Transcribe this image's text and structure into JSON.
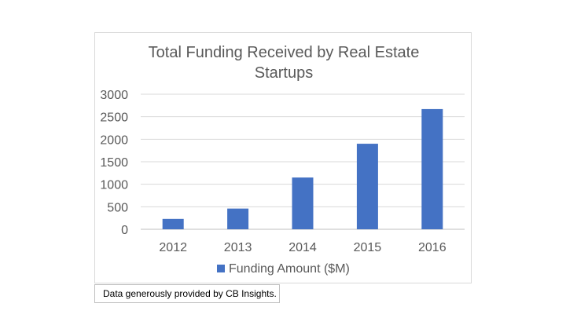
{
  "chart_data": {
    "type": "bar",
    "title": "Total Funding Received by Real Estate Startups",
    "categories": [
      "2012",
      "2013",
      "2014",
      "2015",
      "2016"
    ],
    "series": [
      {
        "name": "Funding Amount ($M)",
        "values": [
          230,
          460,
          1150,
          1900,
          2670
        ],
        "color": "#4472c4"
      }
    ],
    "ylim": [
      0,
      3000
    ],
    "yticks": [
      0,
      500,
      1000,
      1500,
      2000,
      2500,
      3000
    ],
    "grid": true,
    "legend": "bottom"
  },
  "footnote": "Data generously provided by CB Insights."
}
